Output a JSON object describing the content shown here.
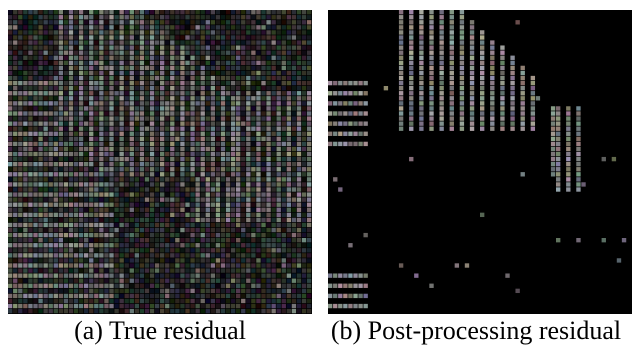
{
  "figure": {
    "panels": [
      {
        "caption": "(a) True residual",
        "content": "dense-noise-residual"
      },
      {
        "caption": "(b) Post-processing residual",
        "content": "sparse-dotted-residual"
      }
    ],
    "colors": {
      "background": "#000000",
      "stripe": "#7d7a76",
      "noise": "#3a3836"
    }
  }
}
